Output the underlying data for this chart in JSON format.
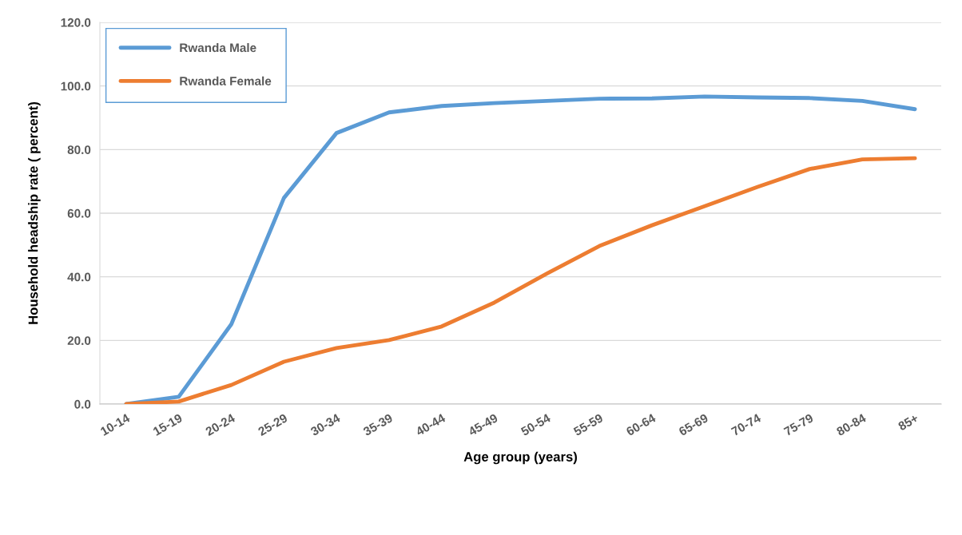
{
  "chart_data": {
    "type": "line",
    "xlabel": "Age group (years)",
    "ylabel": "Household headship rate ( percent)",
    "categories": [
      "10-14",
      "15-19",
      "20-24",
      "25-29",
      "30-34",
      "35-39",
      "40-44",
      "45-49",
      "50-54",
      "55-59",
      "60-64",
      "65-69",
      "70-74",
      "75-79",
      "80-84",
      "85+"
    ],
    "series": [
      {
        "name": "Rwanda Male",
        "color": "#5b9bd5",
        "values": [
          0.0,
          2.3,
          25.1,
          64.8,
          85.2,
          91.7,
          93.7,
          94.6,
          95.3,
          96.0,
          96.1,
          96.7,
          96.4,
          96.2,
          95.3,
          92.7
        ]
      },
      {
        "name": "Rwanda Female",
        "color": "#ed7d31",
        "values": [
          0.0,
          0.8,
          6.0,
          13.3,
          17.6,
          20.1,
          24.4,
          31.9,
          41.0,
          49.7,
          56.2,
          62.2,
          68.2,
          73.9,
          76.9,
          77.3
        ]
      }
    ],
    "ylim": [
      0,
      120
    ],
    "yticks": [
      {
        "value": 0,
        "label": "0.0"
      },
      {
        "value": 20,
        "label": "20.0"
      },
      {
        "value": 40,
        "label": "40.0"
      },
      {
        "value": 60,
        "label": "60.0"
      },
      {
        "value": 80,
        "label": "80.0"
      },
      {
        "value": 100,
        "label": "100.0"
      },
      {
        "value": 120,
        "label": "120.0"
      }
    ],
    "grid": "y",
    "legend": "top left",
    "marker": "none",
    "line_style": "solid"
  }
}
